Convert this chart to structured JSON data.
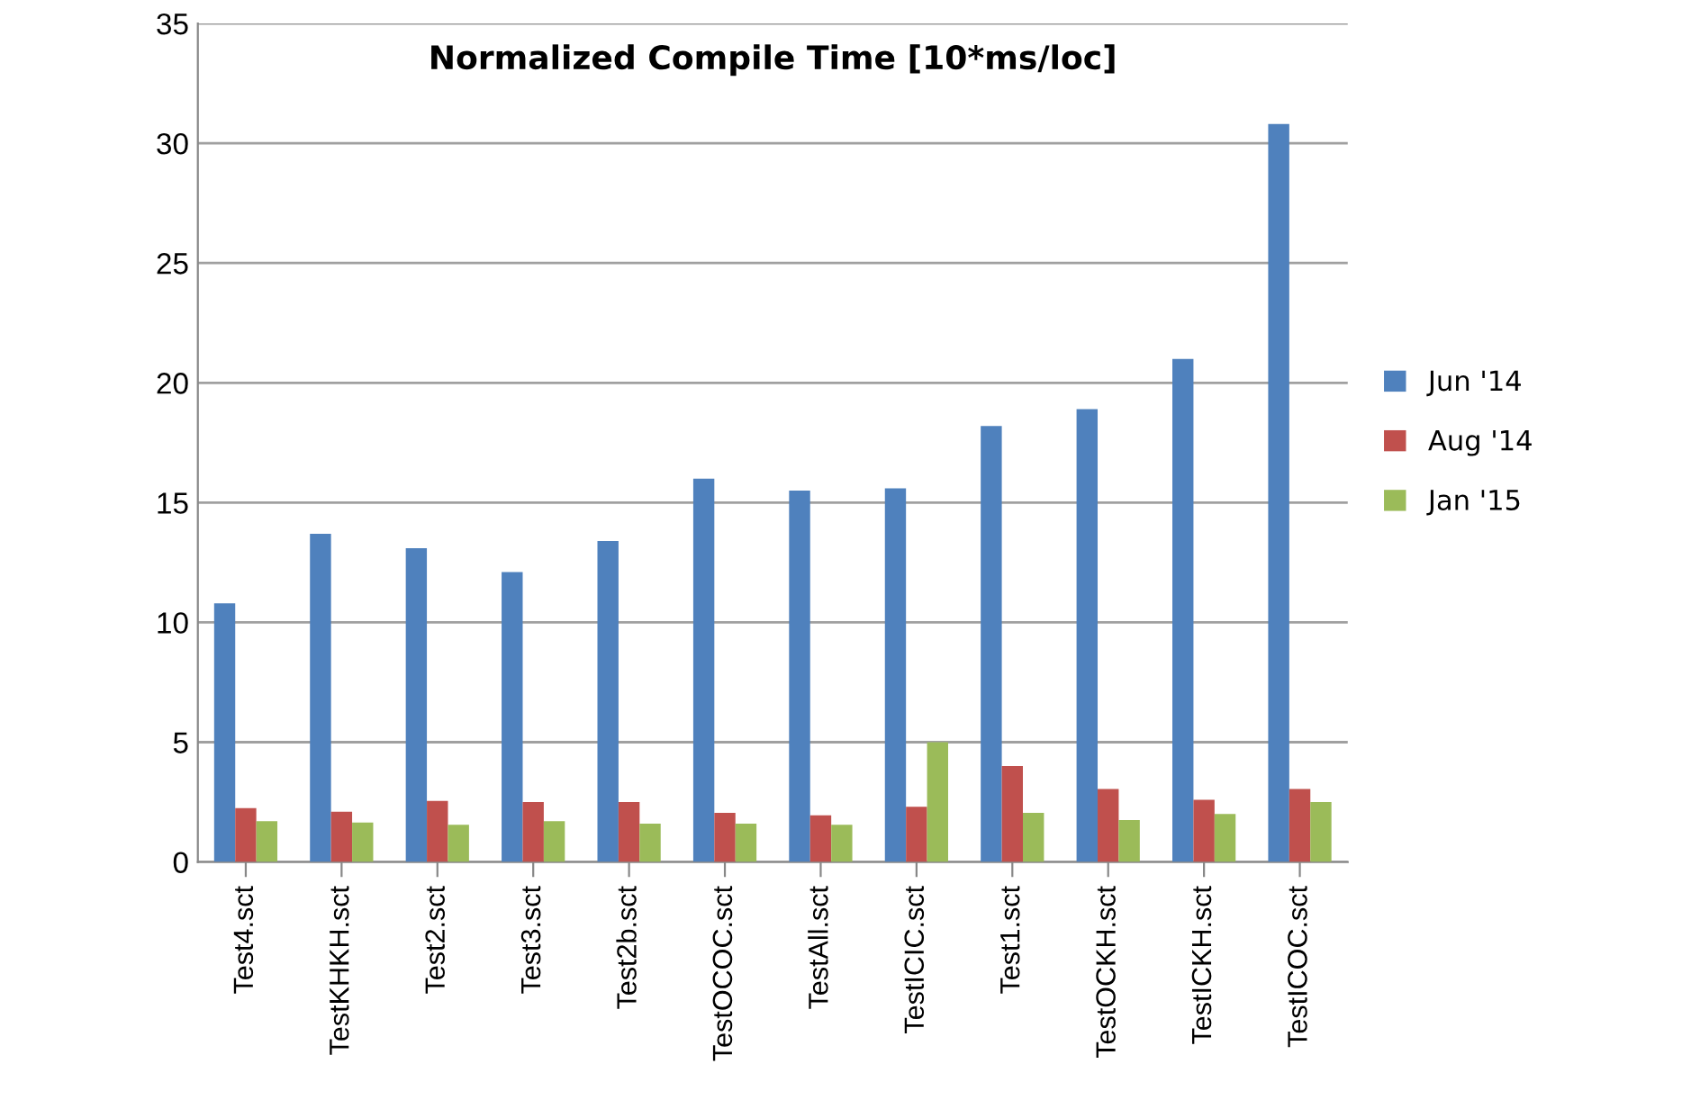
{
  "chart_data": {
    "type": "bar",
    "title": "Normalized Compile Time [10*ms/loc]",
    "categories": [
      "Test4.sct",
      "TestKHKH.sct",
      "Test2.sct",
      "Test3.sct",
      "Test2b.sct",
      "TestOCOC.sct",
      "TestAll.sct",
      "TestICIC.sct",
      "Test1.sct",
      "TestOCKH.sct",
      "TestICKH.sct",
      "TestICOC.sct"
    ],
    "series": [
      {
        "name": "Jun '14",
        "color": "#4f81bd",
        "values": [
          10.8,
          13.7,
          13.1,
          12.1,
          13.4,
          16.0,
          15.5,
          15.6,
          18.2,
          18.9,
          21.0,
          30.8
        ]
      },
      {
        "name": "Aug '14",
        "color": "#c0504d",
        "values": [
          2.25,
          2.1,
          2.55,
          2.5,
          2.5,
          2.05,
          1.95,
          2.3,
          4.0,
          3.05,
          2.6,
          3.05
        ]
      },
      {
        "name": "Jan '15",
        "color": "#9bbb59",
        "values": [
          1.7,
          1.65,
          1.55,
          1.7,
          1.6,
          1.6,
          1.55,
          5.0,
          2.05,
          1.75,
          2.0,
          2.5
        ]
      }
    ],
    "ylim": [
      0,
      35
    ],
    "yticks": [
      0,
      5,
      10,
      15,
      20,
      25,
      30,
      35
    ],
    "grid": "y",
    "legend": "right"
  }
}
